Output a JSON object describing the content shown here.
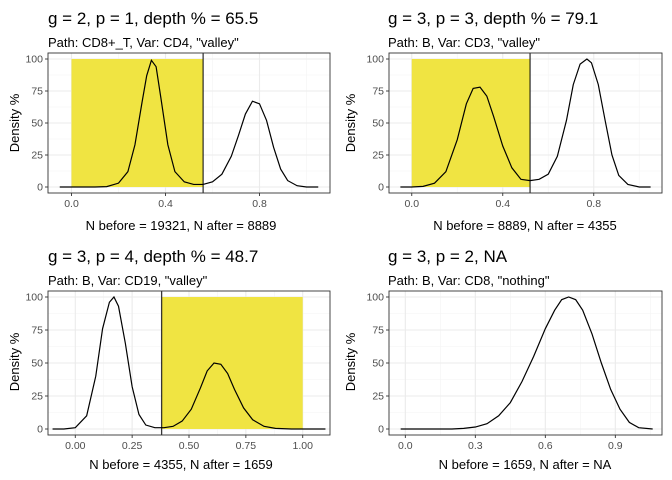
{
  "colors": {
    "highlight": "#F0E442",
    "line": "#000000",
    "grid": "#EBEBEB"
  },
  "chart_data": [
    {
      "type": "line",
      "title": "g = 2, p = 1, depth % = 65.5",
      "subtitle": "Path: CD8+_T, Var: CD4, \"valley\"",
      "xlabel": "N before = 19321, N after = 8889",
      "ylabel": "Density %",
      "xlim": [
        -0.1,
        1.1
      ],
      "ylim": [
        0,
        100
      ],
      "xticks": [
        0.0,
        0.4,
        0.8
      ],
      "xtick_labels": [
        "0.0",
        "0.4",
        "0.8"
      ],
      "yticks": [
        0,
        25,
        50,
        75,
        100
      ],
      "ytick_labels": [
        "0",
        "25",
        "50",
        "75",
        "100"
      ],
      "highlight_range": [
        0.0,
        0.56
      ],
      "cutoff": 0.56,
      "curve": {
        "x": [
          -0.05,
          0.0,
          0.05,
          0.1,
          0.15,
          0.2,
          0.24,
          0.27,
          0.3,
          0.32,
          0.34,
          0.36,
          0.38,
          0.41,
          0.44,
          0.48,
          0.52,
          0.56,
          0.6,
          0.64,
          0.68,
          0.71,
          0.74,
          0.77,
          0.8,
          0.83,
          0.86,
          0.89,
          0.92,
          0.96,
          1.0,
          1.05
        ],
        "y": [
          0,
          0,
          0,
          0,
          0.3,
          3,
          12,
          33,
          66,
          87,
          99,
          94,
          70,
          33,
          12,
          4,
          2,
          2,
          4,
          10,
          24,
          40,
          57,
          67,
          65,
          52,
          31,
          14,
          5,
          1,
          0,
          0
        ]
      }
    },
    {
      "type": "line",
      "title": "g = 3, p = 3, depth % = 79.1",
      "subtitle": "Path: B, Var: CD3, \"valley\"",
      "xlabel": "N before = 8889, N after = 4355",
      "ylabel": "Density %",
      "xlim": [
        -0.1,
        1.1
      ],
      "ylim": [
        0,
        100
      ],
      "xticks": [
        0.0,
        0.4,
        0.8
      ],
      "xtick_labels": [
        "0.0",
        "0.4",
        "0.8"
      ],
      "yticks": [
        0,
        25,
        50,
        75,
        100
      ],
      "ytick_labels": [
        "0",
        "25",
        "50",
        "75",
        "100"
      ],
      "highlight_range": [
        0.0,
        0.52
      ],
      "cutoff": 0.52,
      "curve": {
        "x": [
          -0.05,
          0.0,
          0.05,
          0.1,
          0.15,
          0.2,
          0.24,
          0.27,
          0.3,
          0.33,
          0.36,
          0.4,
          0.44,
          0.48,
          0.52,
          0.56,
          0.6,
          0.64,
          0.68,
          0.71,
          0.74,
          0.77,
          0.79,
          0.82,
          0.85,
          0.88,
          0.91,
          0.95,
          1.0,
          1.05
        ],
        "y": [
          0,
          0,
          0.5,
          3,
          12,
          37,
          65,
          77,
          78,
          71,
          55,
          32,
          15,
          6,
          5,
          6,
          10,
          24,
          52,
          80,
          96,
          100,
          97,
          80,
          52,
          25,
          9,
          2,
          0,
          0
        ]
      }
    },
    {
      "type": "line",
      "title": "g = 3, p = 4, depth % = 48.7",
      "subtitle": "Path: B, Var: CD19, \"valley\"",
      "xlabel": "N before = 4355, N after = 1659",
      "ylabel": "Density %",
      "xlim": [
        -0.12,
        1.12
      ],
      "ylim": [
        0,
        100
      ],
      "xticks": [
        0.0,
        0.25,
        0.5,
        0.75,
        1.0
      ],
      "xtick_labels": [
        "0.00",
        "0.25",
        "0.50",
        "0.75",
        "1.00"
      ],
      "yticks": [
        0,
        25,
        50,
        75,
        100
      ],
      "ytick_labels": [
        "0",
        "25",
        "50",
        "75",
        "100"
      ],
      "highlight_range": [
        0.38,
        1.0
      ],
      "cutoff": 0.38,
      "curve": {
        "x": [
          -0.1,
          -0.05,
          0.0,
          0.05,
          0.09,
          0.12,
          0.15,
          0.17,
          0.19,
          0.22,
          0.25,
          0.28,
          0.31,
          0.35,
          0.39,
          0.43,
          0.47,
          0.51,
          0.55,
          0.58,
          0.61,
          0.64,
          0.67,
          0.7,
          0.74,
          0.78,
          0.83,
          0.88,
          0.95,
          1.0,
          1.1
        ],
        "y": [
          0,
          0,
          1,
          10,
          40,
          76,
          96,
          100,
          93,
          65,
          32,
          11,
          3,
          1,
          1,
          2,
          6,
          15,
          31,
          44,
          50,
          49,
          42,
          30,
          16,
          7,
          2,
          0.5,
          0,
          0,
          0
        ]
      }
    },
    {
      "type": "line",
      "title": "g = 3, p = 2, NA",
      "subtitle": "Path: B, Var: CD8, \"nothing\"",
      "xlabel": "N before = 1659, N after = NA",
      "ylabel": "Density %",
      "xlim": [
        -0.07,
        1.1
      ],
      "ylim": [
        0,
        100
      ],
      "xticks": [
        0.0,
        0.3,
        0.6,
        0.9
      ],
      "xtick_labels": [
        "0.0",
        "0.3",
        "0.6",
        "0.9"
      ],
      "yticks": [
        0,
        25,
        50,
        75,
        100
      ],
      "ytick_labels": [
        "0",
        "25",
        "50",
        "75",
        "100"
      ],
      "highlight_range": null,
      "cutoff": null,
      "curve": {
        "x": [
          -0.02,
          0.05,
          0.1,
          0.15,
          0.2,
          0.25,
          0.3,
          0.35,
          0.4,
          0.45,
          0.5,
          0.55,
          0.6,
          0.64,
          0.67,
          0.7,
          0.73,
          0.76,
          0.8,
          0.84,
          0.88,
          0.92,
          0.96,
          1.0,
          1.06
        ],
        "y": [
          0,
          0,
          0,
          0,
          0,
          0.5,
          1.5,
          4,
          10,
          20,
          36,
          55,
          76,
          90,
          98,
          100,
          98,
          90,
          72,
          50,
          30,
          15,
          5,
          1,
          0
        ]
      }
    }
  ]
}
